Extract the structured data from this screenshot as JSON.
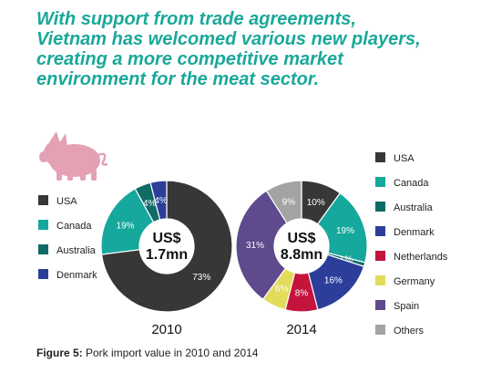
{
  "headline": [
    "With support from trade agreements,",
    "Vietnam has welcomed various new players,",
    "creating a more competitive market",
    "environment for the meat sector."
  ],
  "caption": {
    "label": "Figure 5:",
    "text": " Pork import value in 2010 and 2014"
  },
  "icon": "pig-icon",
  "colors": {
    "USA": "#373737",
    "Canada": "#16a89c",
    "Australia": "#0f6b66",
    "Denmark": "#2c3e9a",
    "Netherlands": "#c4143c",
    "Germany": "#e2dc5a",
    "Spain": "#5e4a8c",
    "Others": "#a3a3a3",
    "headline": "#1aa89a",
    "pig": "#e4a1b4"
  },
  "chart_data": [
    {
      "type": "pie",
      "year_label": "2010",
      "center_label": [
        "US$",
        "1.7mn"
      ],
      "legend_labels": [
        "USA",
        "Canada",
        "Australia",
        "Denmark"
      ],
      "slices": [
        {
          "name": "USA",
          "value": 73,
          "label": "73%"
        },
        {
          "name": "Canada",
          "value": 19,
          "label": "19%"
        },
        {
          "name": "Australia",
          "value": 4,
          "label": "4%"
        },
        {
          "name": "Denmark",
          "value": 4,
          "label": "4%"
        }
      ]
    },
    {
      "type": "pie",
      "year_label": "2014",
      "center_label": [
        "US$",
        "8.8mn"
      ],
      "legend_labels": [
        "USA",
        "Canada",
        "Australia",
        "Denmark",
        "Netherlands",
        "Germany",
        "Spain",
        "Others"
      ],
      "slices": [
        {
          "name": "USA",
          "value": 10,
          "label": "10%"
        },
        {
          "name": "Canada",
          "value": 19,
          "label": "19%"
        },
        {
          "name": "Australia",
          "value": 1,
          "label": "1%"
        },
        {
          "name": "Denmark",
          "value": 16,
          "label": "16%"
        },
        {
          "name": "Netherlands",
          "value": 8,
          "label": "8%"
        },
        {
          "name": "Germany",
          "value": 6,
          "label": "6%"
        },
        {
          "name": "Spain",
          "value": 31,
          "label": "31%"
        },
        {
          "name": "Others",
          "value": 9,
          "label": "9%"
        }
      ]
    }
  ]
}
